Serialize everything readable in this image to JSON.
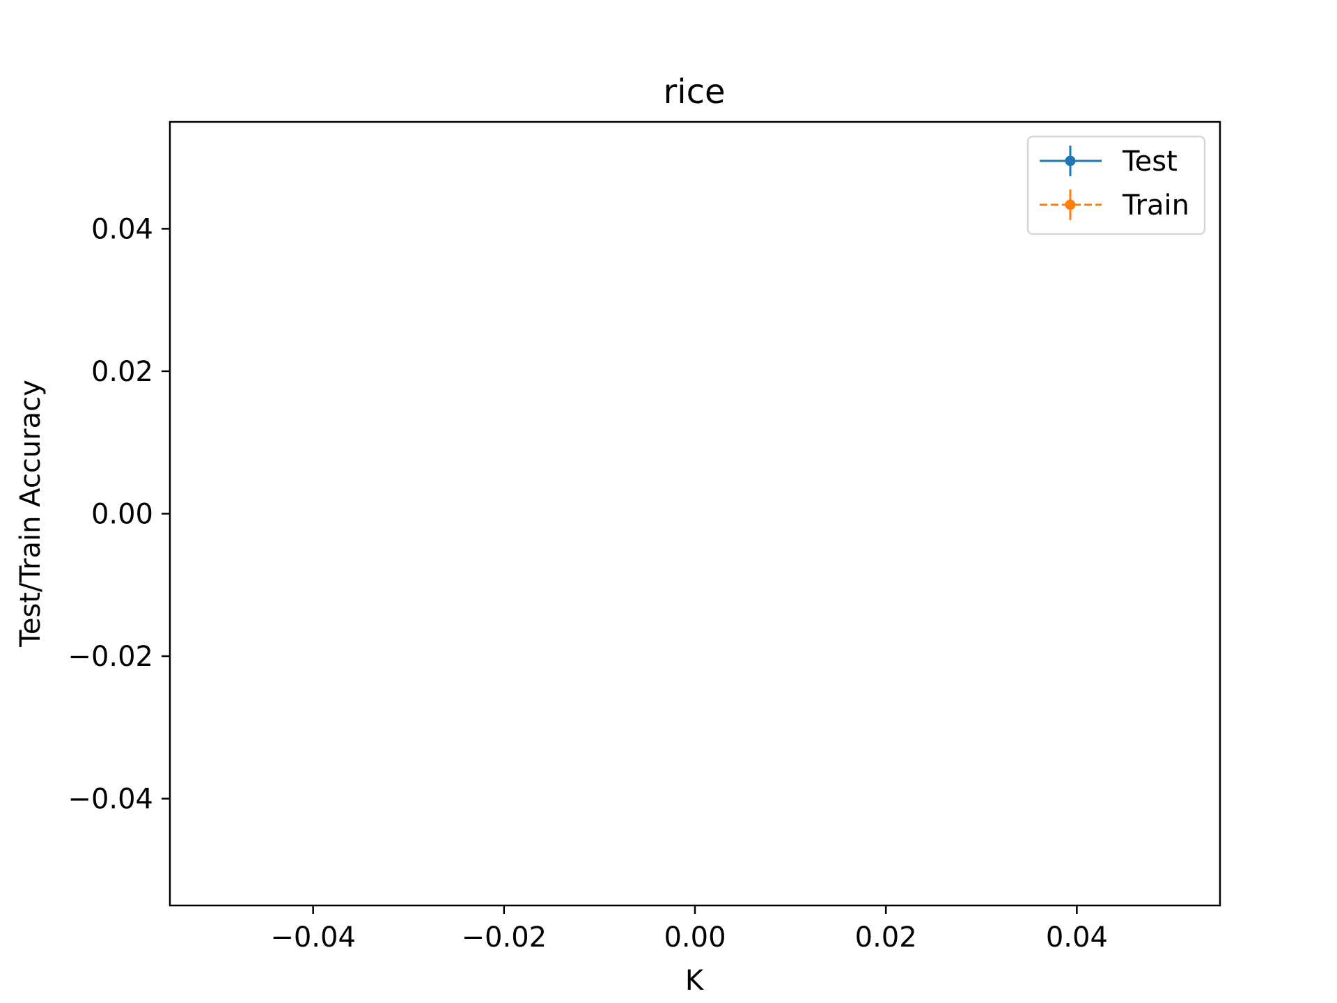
{
  "chart_data": {
    "type": "line",
    "title": "rice",
    "xlabel": "K",
    "ylabel": "Test/Train Accuracy",
    "xlim": [
      -0.055,
      0.055
    ],
    "ylim": [
      -0.055,
      0.055
    ],
    "x_ticks": [
      -0.04,
      -0.02,
      0.0,
      0.02,
      0.04
    ],
    "x_tick_labels": [
      "−0.04",
      "−0.02",
      "0.00",
      "0.02",
      "0.04"
    ],
    "y_ticks": [
      0.04,
      0.02,
      0.0,
      -0.02,
      -0.04
    ],
    "y_tick_labels": [
      "0.04",
      "0.02",
      "0.00",
      "−0.02",
      "−0.04"
    ],
    "grid": false,
    "legend_position": "top-right",
    "series": [
      {
        "name": "Test",
        "color": "#1f77b4",
        "linestyle": "solid",
        "marker": "circle",
        "errorbars": true,
        "x": [],
        "values": []
      },
      {
        "name": "Train",
        "color": "#ff7f0e",
        "linestyle": "dashed",
        "marker": "circle",
        "errorbars": true,
        "x": [],
        "values": []
      }
    ]
  }
}
